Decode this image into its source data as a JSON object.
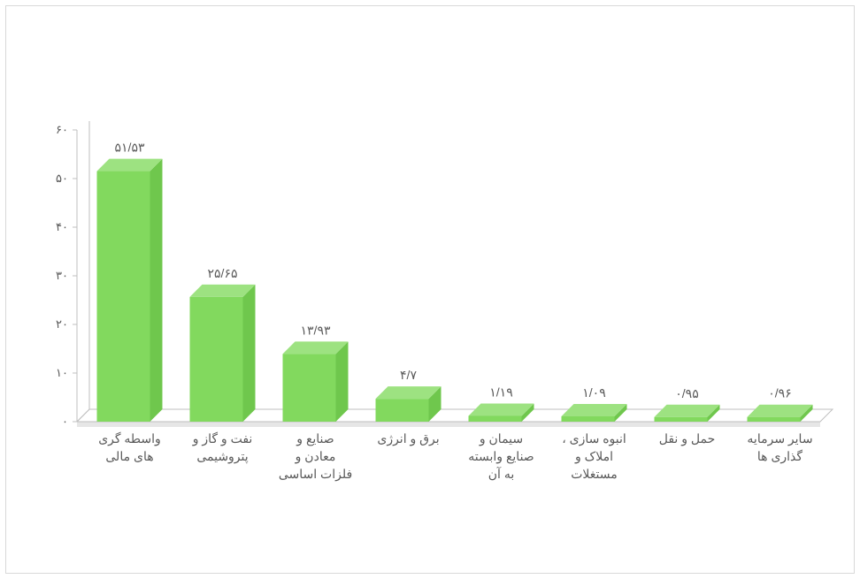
{
  "chart": {
    "type": "bar-3d",
    "background_color": "#ffffff",
    "frame_border_color": "#d9d9d9",
    "y_axis": {
      "min": 0,
      "max": 60,
      "tick_step": 10,
      "ticks": [
        0,
        10,
        20,
        30,
        40,
        50,
        60
      ],
      "tick_labels_persian": [
        "۰",
        "۱۰",
        "۲۰",
        "۳۰",
        "۴۰",
        "۵۰",
        "۶۰"
      ],
      "tick_fontsize": 13,
      "tick_color": "#595959"
    },
    "x_axis": {
      "label_fontsize": 14,
      "label_color": "#595959"
    },
    "bar": {
      "colors": {
        "top": "#9de281",
        "front": "#82d95e",
        "side": "#6fc74d"
      },
      "depth": 14,
      "width": 60,
      "label_fontsize": 14,
      "label_color": "#595959"
    },
    "floor": {
      "top_color": "#ffffff",
      "side_color": "#e6e6e6"
    },
    "axis_line_color": "#bfbfbf",
    "series": [
      {
        "category": "واسطه گری های مالی",
        "value": 51.53,
        "label": "۵۱/۵۳"
      },
      {
        "category": "نفت و گاز و پتروشیمی",
        "value": 25.65,
        "label": "۲۵/۶۵"
      },
      {
        "category": "صنایع و معادن و فلزات اساسی",
        "value": 13.93,
        "label": "۱۳/۹۳"
      },
      {
        "category": "برق و انرژی",
        "value": 4.7,
        "label": "۴/۷"
      },
      {
        "category": "سیمان و صنایع وابسته به آن",
        "value": 1.19,
        "label": "۱/۱۹"
      },
      {
        "category": "انبوه سازی ، املاک و مستغلات",
        "value": 1.09,
        "label": "۱/۰۹"
      },
      {
        "category": "حمل و نقل",
        "value": 0.95,
        "label": "۰/۹۵"
      },
      {
        "category": "سایر سرمایه گذاری ها",
        "value": 0.96,
        "label": "۰/۹۶"
      }
    ]
  }
}
